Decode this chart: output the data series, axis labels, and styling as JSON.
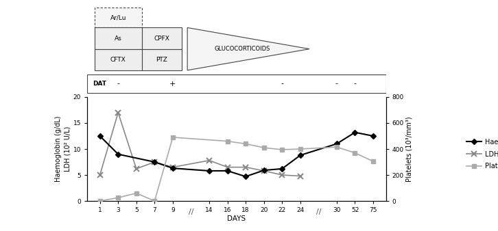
{
  "title": "",
  "xlabel": "DAYS",
  "ylabel_left": "Haemoglobin (g/dL)\nLDH (10² U/L)",
  "ylabel_right": "Platelets (10³/mm³)",
  "hb_days": [
    1,
    3,
    7,
    9,
    14,
    16,
    18,
    20,
    22,
    24,
    30,
    52,
    75
  ],
  "hb_values": [
    12.5,
    9.0,
    7.5,
    6.3,
    5.8,
    5.8,
    4.7,
    5.9,
    6.2,
    8.8,
    11.0,
    13.2,
    12.5
  ],
  "ldh_days": [
    1,
    3,
    5,
    7,
    9,
    14,
    16,
    18,
    20,
    22,
    24
  ],
  "ldh_values": [
    5.0,
    17.0,
    6.2,
    7.5,
    6.5,
    7.8,
    6.5,
    6.5,
    5.8,
    5.0,
    4.8
  ],
  "plt_days": [
    1,
    3,
    5,
    7,
    9,
    16,
    18,
    20,
    22,
    24,
    30,
    52,
    75
  ],
  "plt_values": [
    0,
    25,
    60,
    0,
    490,
    460,
    440,
    410,
    395,
    400,
    415,
    370,
    305
  ],
  "ylim_left": [
    0,
    20
  ],
  "ylim_right": [
    0,
    800
  ],
  "yticks_left": [
    0,
    5,
    10,
    15,
    20
  ],
  "yticks_right": [
    0,
    200,
    400,
    600,
    800
  ],
  "hb_color": "#000000",
  "ldh_color": "#888888",
  "plt_color": "#aaaaaa",
  "dat_signs": {
    "3": "-",
    "9": "+",
    "22": "-",
    "30": "-",
    "52": "-"
  }
}
